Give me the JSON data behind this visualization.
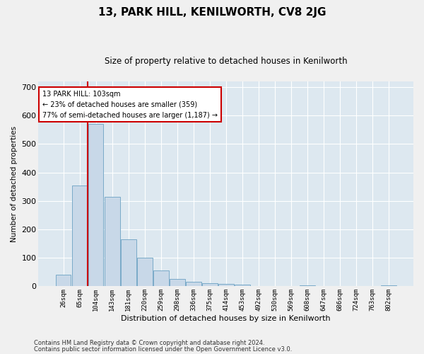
{
  "title": "13, PARK HILL, KENILWORTH, CV8 2JG",
  "subtitle": "Size of property relative to detached houses in Kenilworth",
  "xlabel": "Distribution of detached houses by size in Kenilworth",
  "ylabel": "Number of detached properties",
  "footer1": "Contains HM Land Registry data © Crown copyright and database right 2024.",
  "footer2": "Contains public sector information licensed under the Open Government Licence v3.0.",
  "annotation_line1": "13 PARK HILL: 103sqm",
  "annotation_line2": "← 23% of detached houses are smaller (359)",
  "annotation_line3": "77% of semi-detached houses are larger (1,187) →",
  "bar_color": "#c8d8e8",
  "bar_edge_color": "#7aaac8",
  "vline_color": "#cc0000",
  "annotation_box_edge_color": "#cc0000",
  "background_color": "#dde8f0",
  "fig_background_color": "#f0f0f0",
  "categories": [
    "26sqm",
    "65sqm",
    "104sqm",
    "143sqm",
    "181sqm",
    "220sqm",
    "259sqm",
    "298sqm",
    "336sqm",
    "375sqm",
    "414sqm",
    "453sqm",
    "492sqm",
    "530sqm",
    "569sqm",
    "608sqm",
    "647sqm",
    "686sqm",
    "724sqm",
    "763sqm",
    "802sqm"
  ],
  "bar_heights": [
    40,
    355,
    570,
    315,
    165,
    100,
    55,
    25,
    15,
    10,
    8,
    5,
    0,
    0,
    0,
    3,
    0,
    0,
    0,
    0,
    3
  ],
  "ylim": [
    0,
    720
  ],
  "yticks": [
    0,
    100,
    200,
    300,
    400,
    500,
    600,
    700
  ],
  "grid_color": "#ffffff",
  "vline_x_index": 1.5
}
